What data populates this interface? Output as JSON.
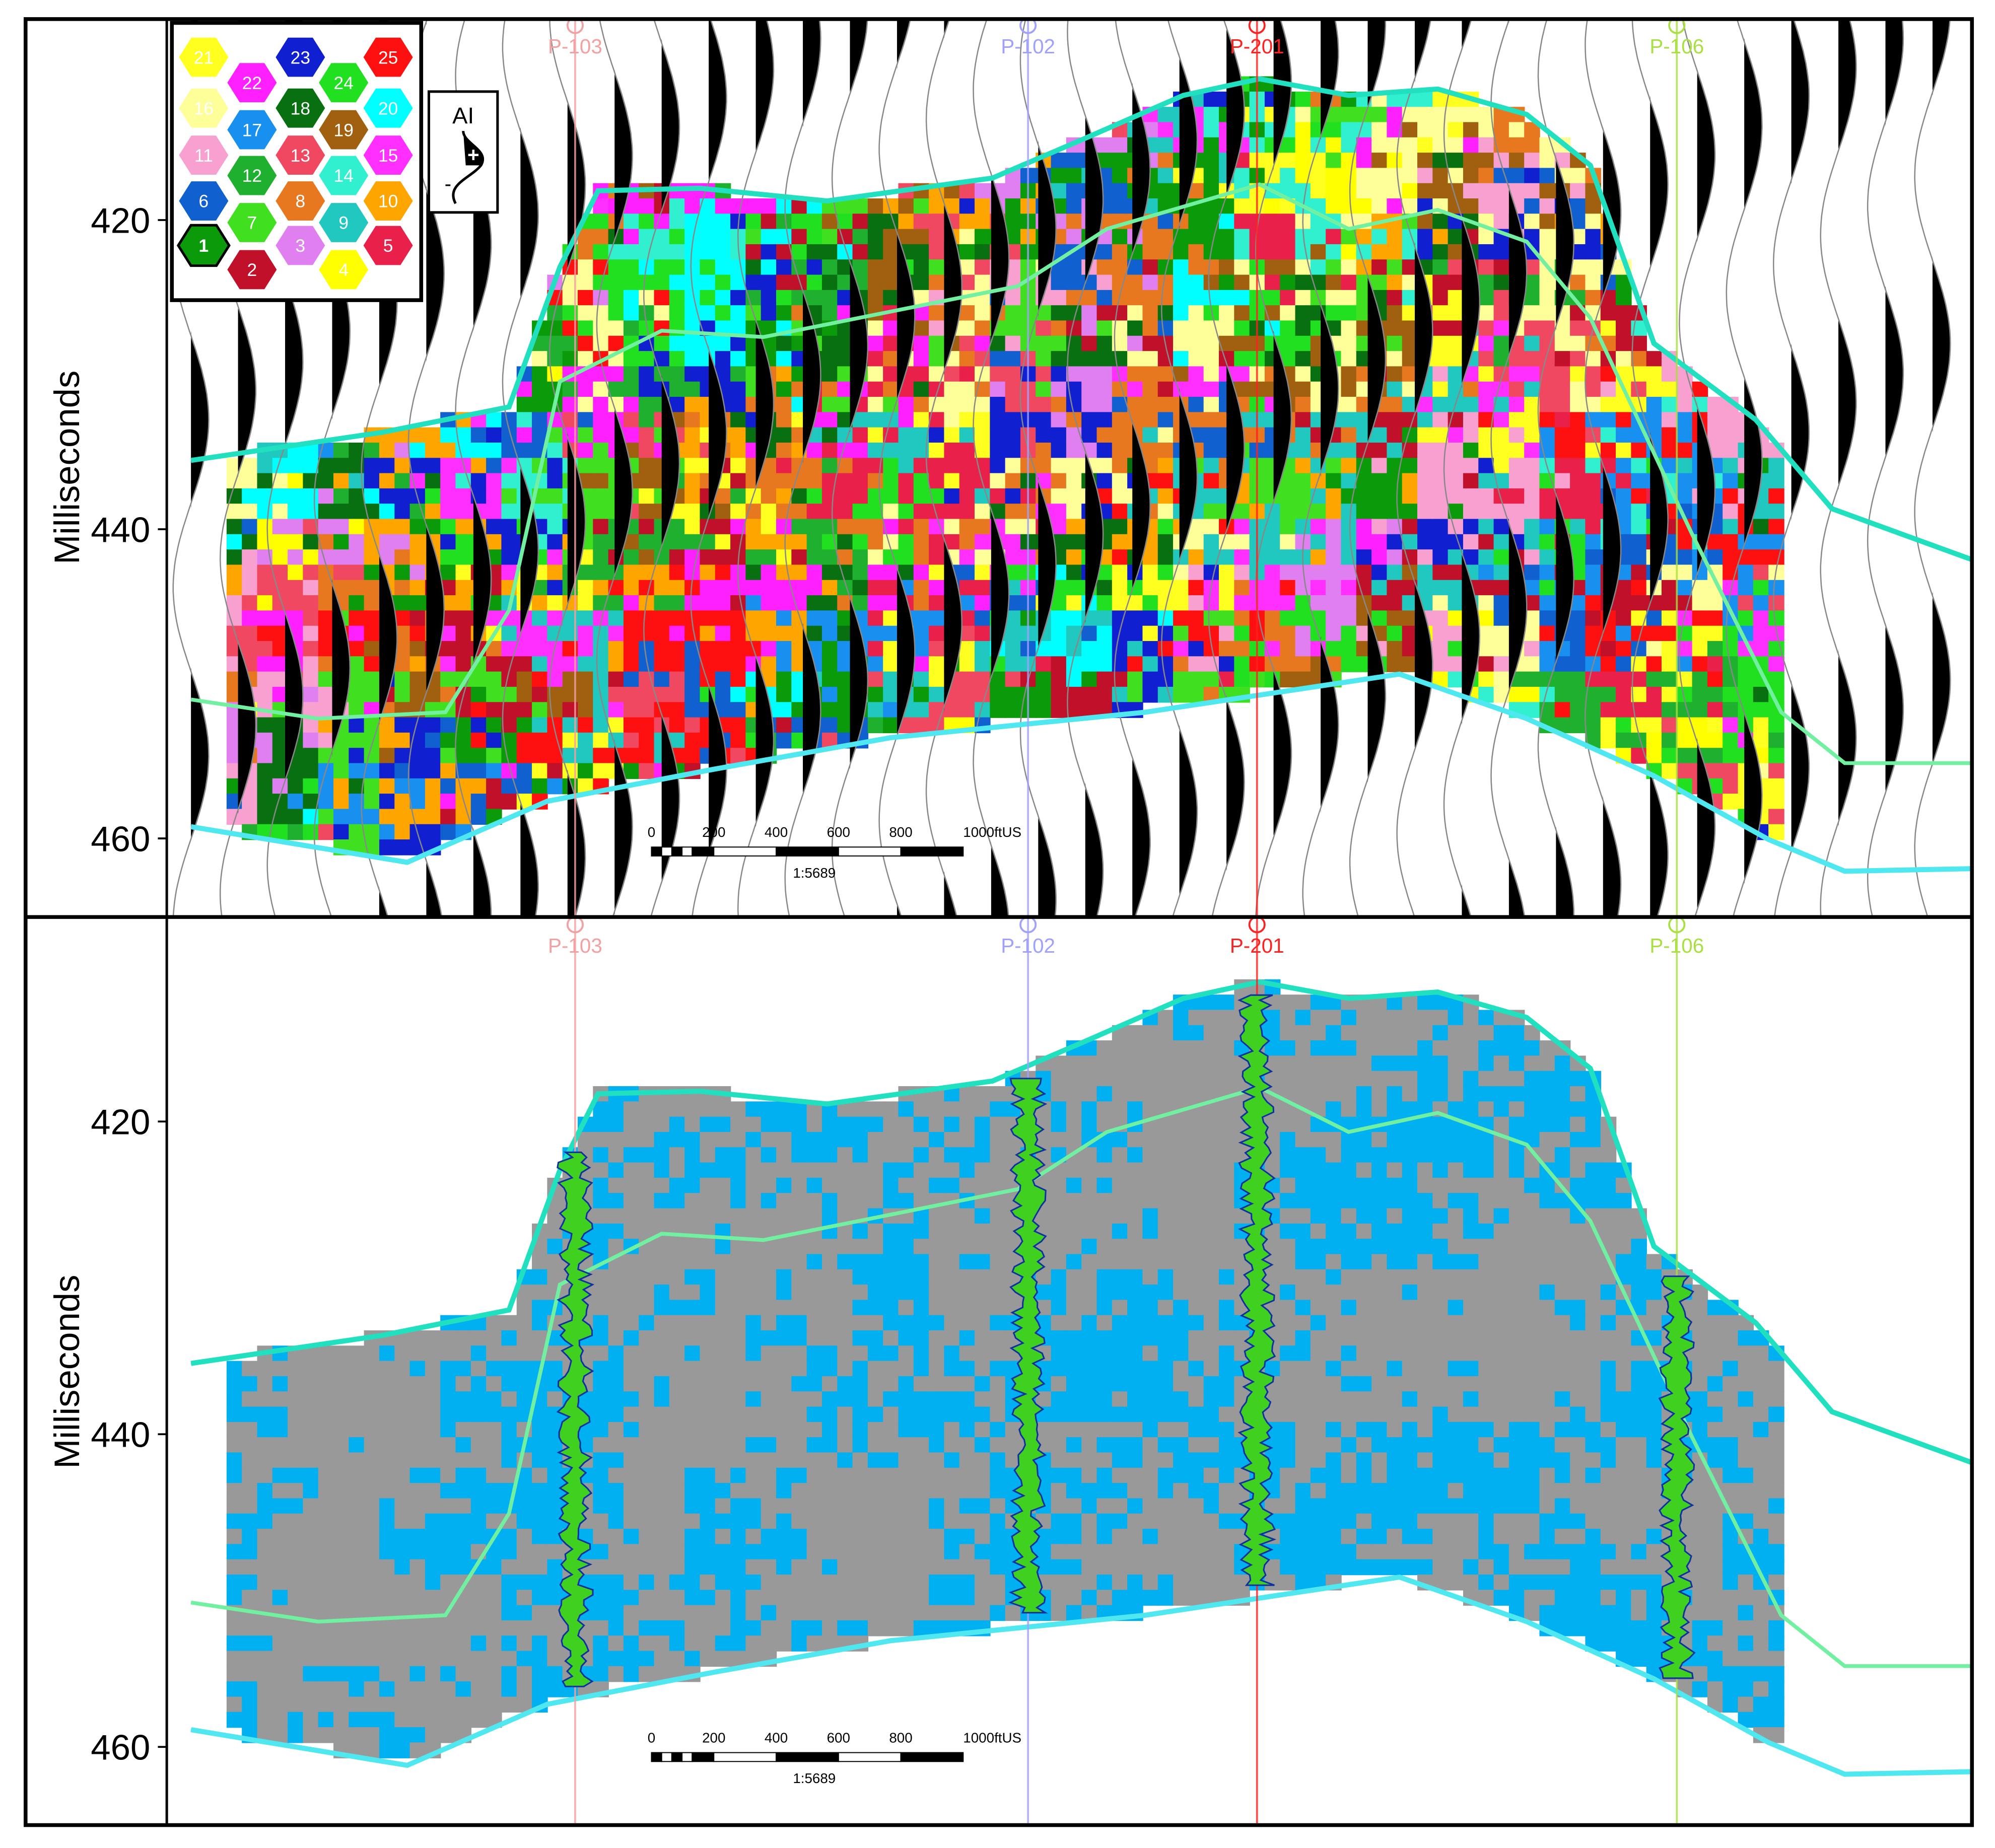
{
  "panels": [
    {
      "axis_label": "Milliseconds",
      "ylim": [
        407,
        465
      ],
      "yticks": [
        420,
        440,
        460
      ],
      "wells": [
        "P-103",
        "P-102",
        "P-201",
        "P-106"
      ],
      "scale_bar": {
        "labels": [
          "0",
          "200",
          "400",
          "600",
          "800",
          "1000ftUS"
        ],
        "ratio": "1:5689"
      }
    },
    {
      "axis_label": "Milliseconds",
      "ylim": [
        407,
        465
      ],
      "yticks": [
        420,
        440,
        460
      ],
      "wells": [
        "P-103",
        "P-102",
        "P-201",
        "P-106"
      ],
      "scale_bar": {
        "labels": [
          "0",
          "200",
          "400",
          "600",
          "800",
          "1000ftUS"
        ],
        "ratio": "1:5689"
      }
    }
  ],
  "legend": {
    "title": "AI",
    "polarity": [
      "+",
      "-"
    ],
    "cells": [
      "1",
      "2",
      "3",
      "4",
      "5",
      "6",
      "7",
      "8",
      "9",
      "10",
      "11",
      "12",
      "13",
      "14",
      "15",
      "16",
      "17",
      "18",
      "19",
      "20",
      "21",
      "22",
      "23",
      "24",
      "25"
    ]
  }
}
